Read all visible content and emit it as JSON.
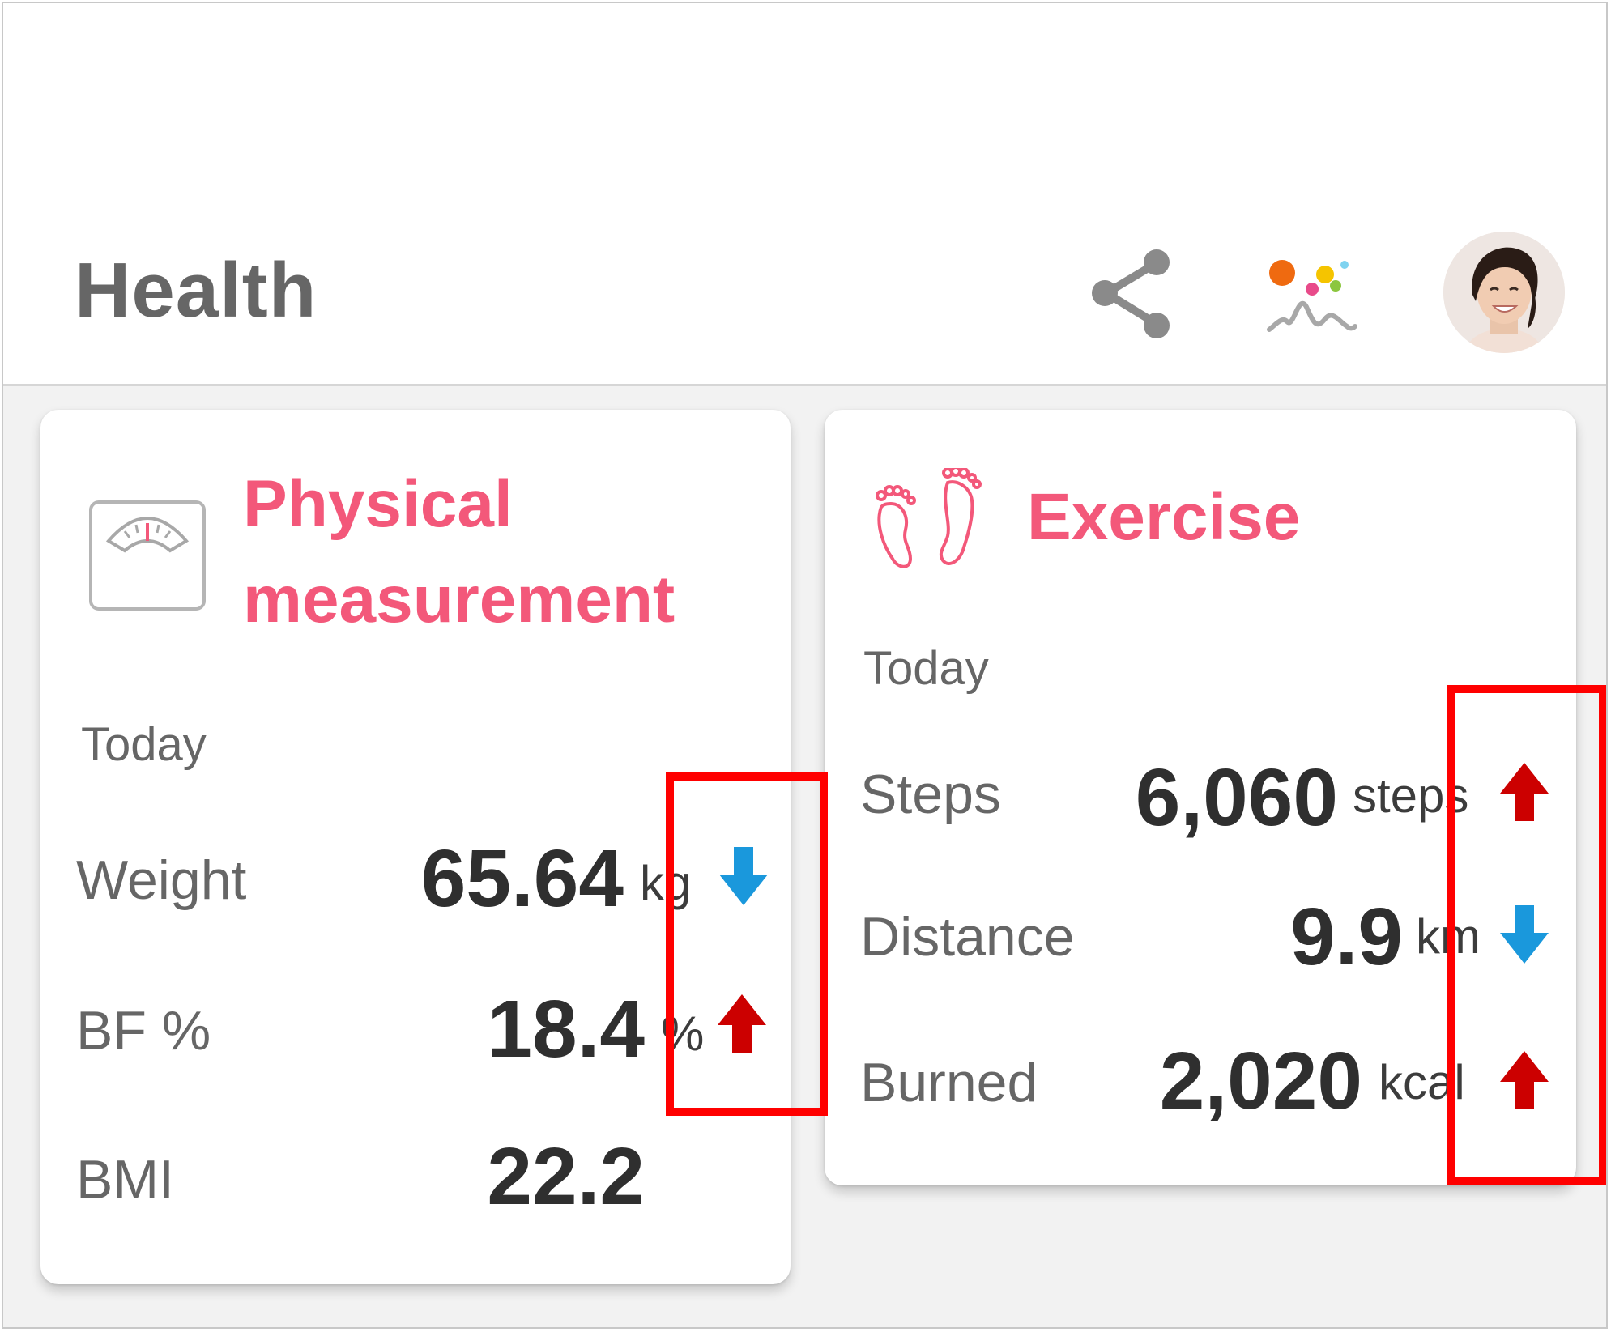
{
  "header": {
    "title": "Health",
    "share_icon": "share-icon",
    "logo_icon": "app-logo-icon",
    "avatar": "user-avatar"
  },
  "physical": {
    "title_line1": "Physical",
    "title_line2": "measurement",
    "icon": "scale-icon",
    "today": "Today",
    "rows": [
      {
        "label": "Weight",
        "value": "65.64",
        "unit": "kg",
        "trend": "down"
      },
      {
        "label": "BF %",
        "value": "18.4",
        "unit": "%",
        "trend": "up"
      },
      {
        "label": "BMI",
        "value": "22.2",
        "unit": "",
        "trend": "none"
      }
    ]
  },
  "exercise": {
    "title": "Exercise",
    "icon": "footprints-icon",
    "today": "Today",
    "rows": [
      {
        "label": "Steps",
        "value": "6,060",
        "unit": "steps",
        "trend": "up"
      },
      {
        "label": "Distance",
        "value": "9.9",
        "unit": "km",
        "trend": "down"
      },
      {
        "label": "Burned",
        "value": "2,020",
        "unit": "kcal",
        "trend": "up"
      }
    ]
  },
  "colors": {
    "accent": "#f3587a",
    "up_arrow": "#cc0000",
    "down_arrow": "#1a98dc",
    "highlight": "#ff0000"
  }
}
